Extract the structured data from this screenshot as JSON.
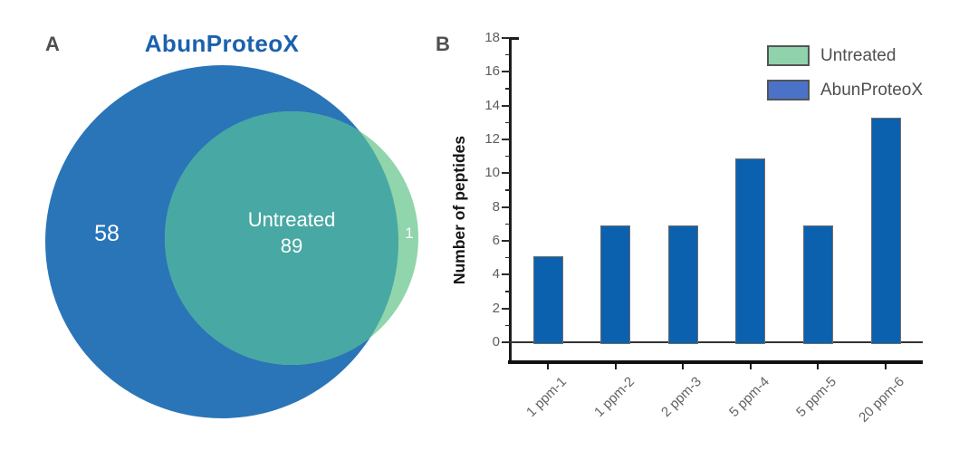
{
  "figure": {
    "panel_a": {
      "label": "A"
    },
    "panel_b": {
      "label": "B"
    }
  },
  "chart_data": [
    {
      "type": "venn",
      "title": "AbunProteoX",
      "title_color": "#1b61ae",
      "sets": [
        {
          "label": "AbunProteoX",
          "color": "#2a75b8"
        },
        {
          "label": "Untreated",
          "color": "#90d5ab"
        }
      ],
      "regions": {
        "abunproteox_only": 58,
        "intersection": 89,
        "untreated_only": 1
      },
      "intersection_color": "#48a8a3",
      "value_label_color": "#ffffff"
    },
    {
      "type": "bar",
      "categories": [
        "1 ppm-1",
        "1 ppm-2",
        "2 ppm-3",
        "5 ppm-4",
        "5 ppm-5",
        "20 ppm-6"
      ],
      "values": [
        5.2,
        7,
        7,
        11,
        7,
        13.4
      ],
      "series_name": "AbunProteoX",
      "title": "",
      "xlabel": "",
      "ylabel": "Number of peptides",
      "ylim": [
        0,
        18
      ],
      "yticks": [
        0,
        2,
        4,
        6,
        8,
        10,
        12,
        14,
        16,
        18
      ],
      "minor_yticks": [
        1,
        3,
        5,
        7,
        9,
        11,
        13,
        15,
        17
      ],
      "xtick_rotation": 45,
      "grid": false,
      "bar_color": "#0b61ae",
      "bar_border_color": "#6e6e6e",
      "legend_position": "upper right",
      "legend": [
        {
          "label": "Untreated",
          "color": "#8fd2ab"
        },
        {
          "label": "AbunProteoX",
          "color": "#4a72c8"
        }
      ]
    }
  ]
}
